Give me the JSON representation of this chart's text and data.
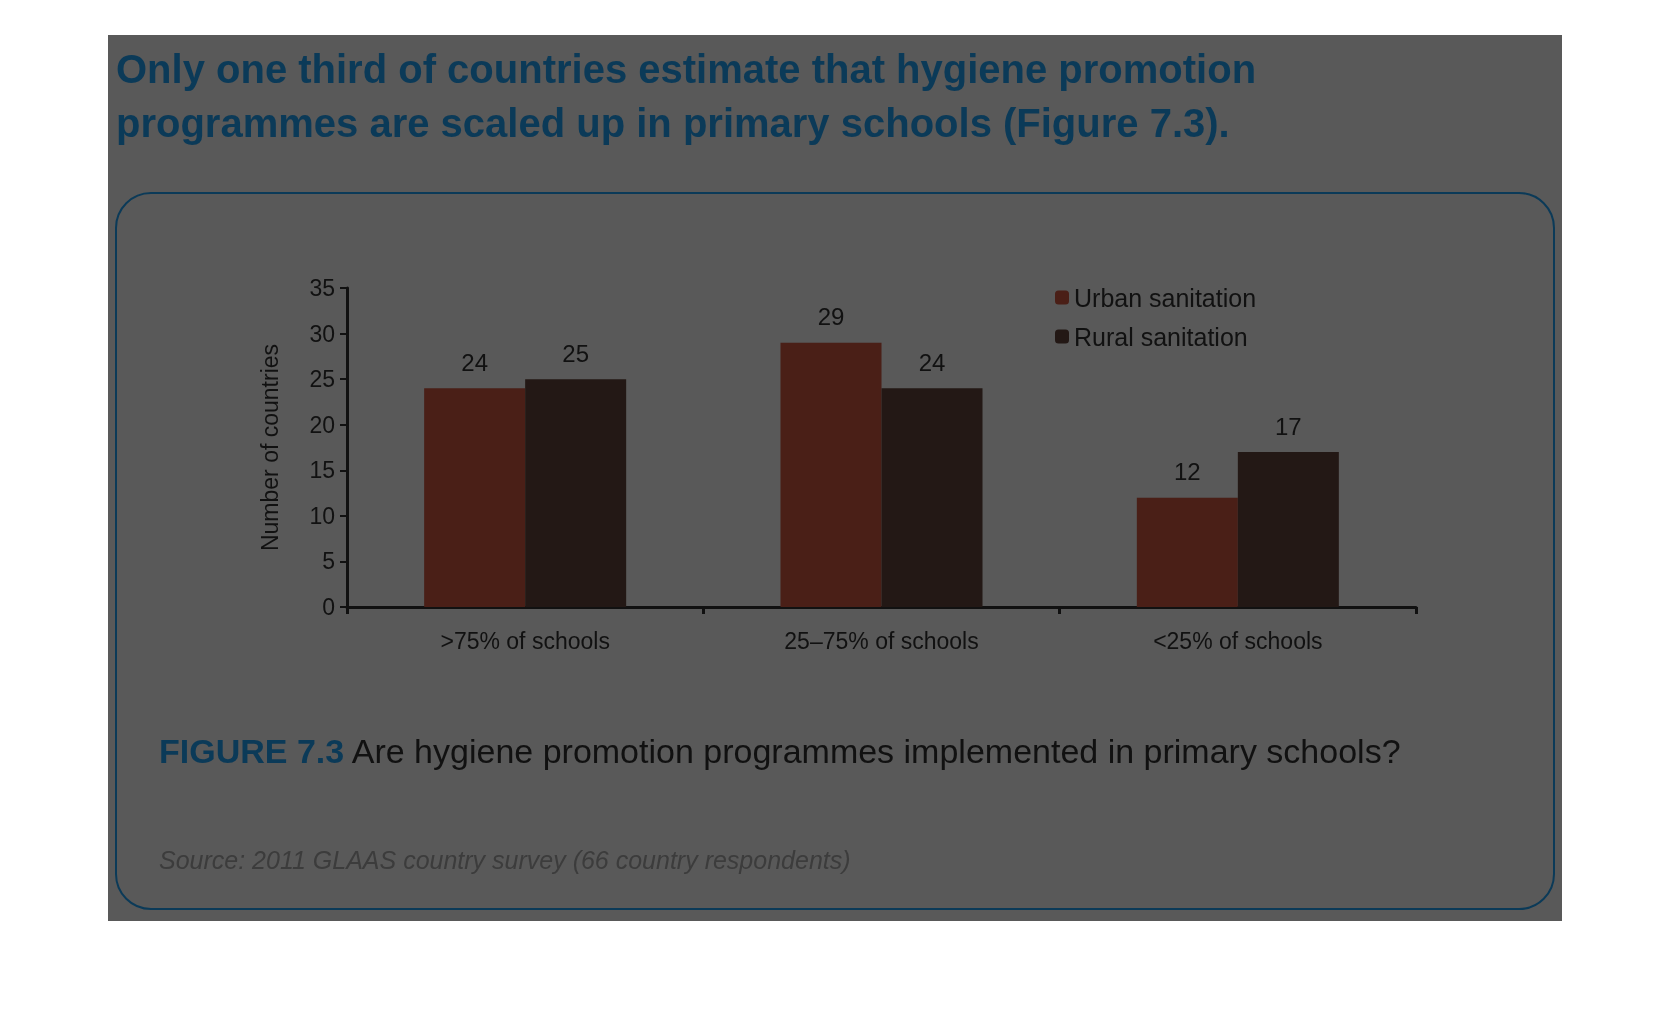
{
  "chart_data": {
    "type": "bar",
    "title": "Only one third of countries estimate that hygiene promotion programmes are scaled up in primary schools (Figure 7.3).",
    "annotations": [
      "FIGURE 7.3",
      "Are hygiene promotion programmes implemented in primary schools?",
      "Source: 2011 GLAAS country survey (66 country respondents)"
    ],
    "ylabel": "Number of countries",
    "categories": [
      ">75% of schools",
      "25–75% of schools",
      "<25% of schools"
    ],
    "series": [
      {
        "name": "Urban sanitation",
        "color": "#4a1f17",
        "values": [
          24,
          29,
          12
        ]
      },
      {
        "name": "Rural sanitation",
        "color": "#231815",
        "values": [
          25,
          24,
          17
        ]
      }
    ],
    "ylim": [
      0,
      35
    ],
    "yticks": [
      0,
      5,
      10,
      15,
      20,
      25,
      30,
      35
    ],
    "grid": false,
    "legend": "top right",
    "data_labels": true
  }
}
